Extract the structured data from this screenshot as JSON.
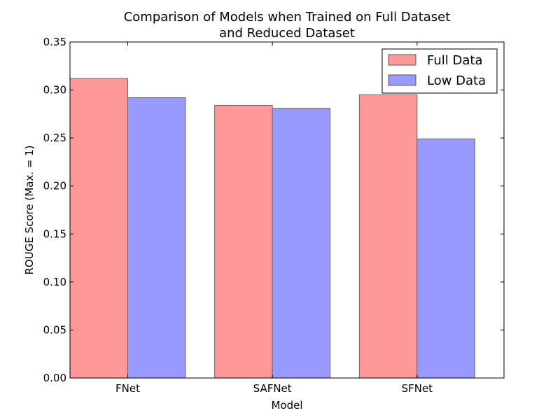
{
  "chart_data": {
    "type": "bar",
    "title": [
      "Comparison of Models when Trained on Full Dataset",
      "and Reduced Dataset"
    ],
    "xlabel": "Model",
    "ylabel": "ROUGE Score (Max. = 1)",
    "categories": [
      "FNet",
      "SAFNet",
      "SFNet"
    ],
    "series": [
      {
        "name": "Full Data",
        "values": [
          0.312,
          0.284,
          0.295
        ],
        "color": "#ff9999"
      },
      {
        "name": "Low Data",
        "values": [
          0.292,
          0.281,
          0.249
        ],
        "color": "#9999ff"
      }
    ],
    "ylim": [
      0,
      0.35
    ],
    "yticks": [
      "0.00",
      "0.05",
      "0.10",
      "0.15",
      "0.20",
      "0.25",
      "0.30",
      "0.35"
    ],
    "ytick_values": [
      0,
      0.05,
      0.1,
      0.15,
      0.2,
      0.25,
      0.3,
      0.35
    ],
    "legend_position": "top-right",
    "grid": false
  }
}
